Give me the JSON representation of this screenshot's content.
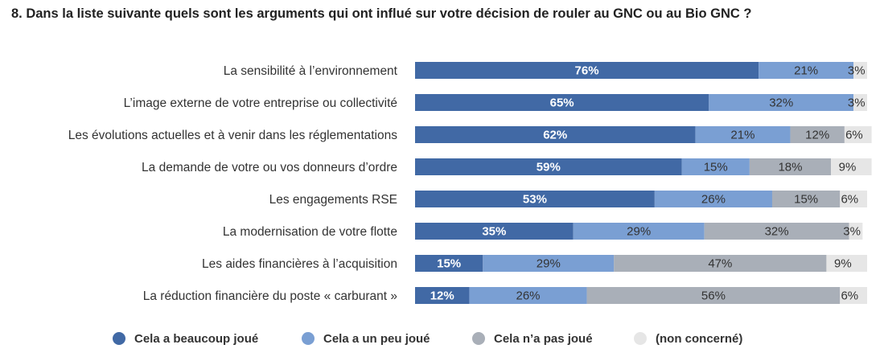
{
  "chart_data": {
    "type": "bar",
    "orientation": "horizontal",
    "stacked": true,
    "title": "8. Dans la liste suivante quels sont les arguments qui ont influé sur votre décision de rouler au GNC ou au Bio GNC ?",
    "categories": [
      "La sensibilité à l’environnement",
      "L’image externe de votre entreprise ou collectivité",
      "Les évolutions actuelles et à venir dans les réglementations",
      "La demande de votre ou vos donneurs d’ordre",
      "Les engagements RSE",
      "La modernisation de votre flotte",
      "Les aides financières à l’acquisition",
      "La réduction financière du poste « carburant »"
    ],
    "series": [
      {
        "name": "Cela a beaucoup joué",
        "color": "#4169a5",
        "values": [
          76,
          65,
          62,
          59,
          53,
          35,
          15,
          12
        ]
      },
      {
        "name": "Cela a un peu joué",
        "color": "#7a9fd3",
        "values": [
          21,
          32,
          21,
          15,
          26,
          29,
          29,
          26
        ]
      },
      {
        "name": "Cela n’a pas joué",
        "color": "#a9afb8",
        "values": [
          0,
          0,
          12,
          18,
          15,
          32,
          47,
          56
        ]
      },
      {
        "name": "(non concerné)",
        "color": "#e6e6e6",
        "values": [
          3,
          3,
          6,
          9,
          6,
          3,
          9,
          6
        ]
      }
    ],
    "value_suffix": "%",
    "xlim": [
      0,
      100
    ],
    "legend_position": "bottom",
    "grid": false
  }
}
